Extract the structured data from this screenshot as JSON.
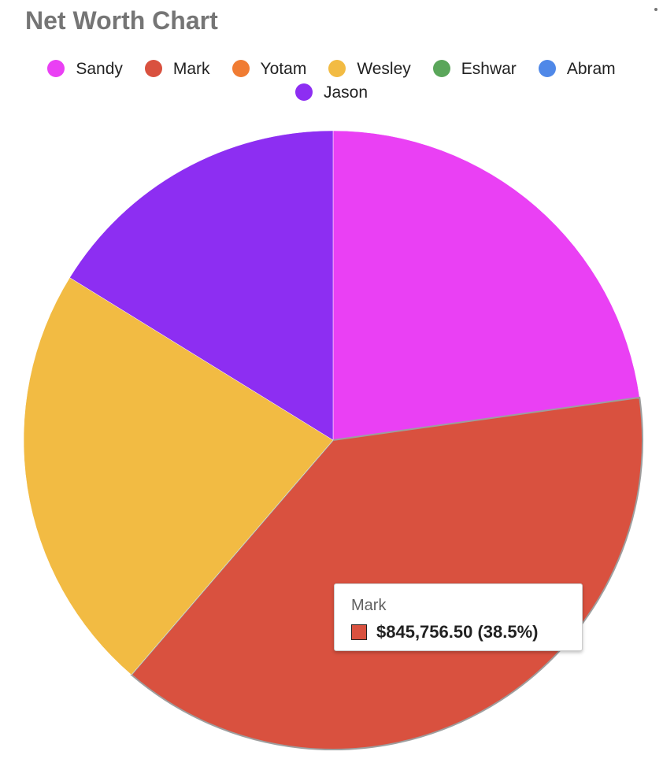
{
  "menu_icon": "more-vert-icon",
  "chart_data": {
    "type": "pie",
    "title": "Net Worth Chart",
    "legend_position": "top",
    "categories": [
      "Sandy",
      "Mark",
      "Yotam",
      "Wesley",
      "Eshwar",
      "Abram",
      "Jason"
    ],
    "values": [
      0.228,
      0.385,
      0.0,
      0.225,
      0.0,
      0.0,
      0.162
    ],
    "value_unit": "share of total",
    "colors": [
      "#ea40f4",
      "#d9513f",
      "#f07c33",
      "#f2bb43",
      "#5aa65a",
      "#4f88e8",
      "#8d2ef2"
    ],
    "slice_start": "12 o'clock",
    "slice_direction": "clockwise",
    "tooltip": {
      "series": "Mark",
      "color": "#d9513f",
      "value_text": "$845,756.50 (38.5%)"
    }
  }
}
